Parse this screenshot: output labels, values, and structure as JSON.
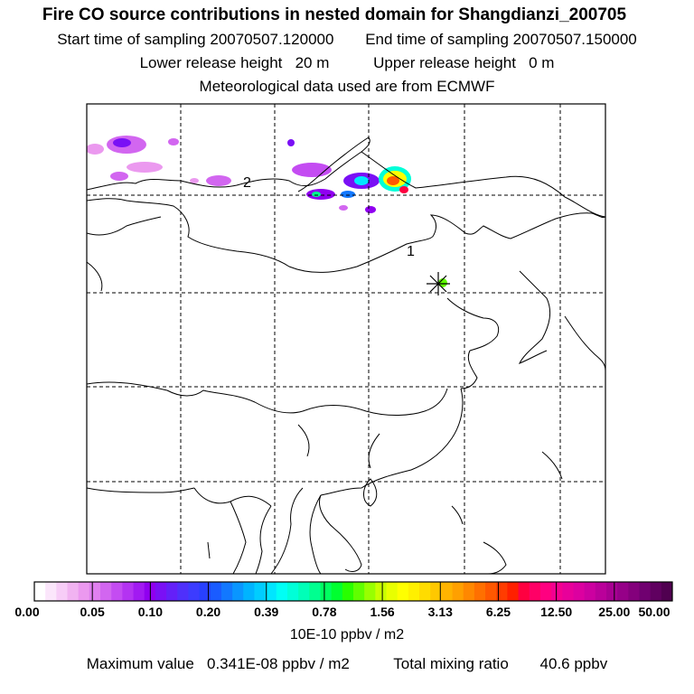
{
  "header": {
    "title": "Fire CO source contributions in nested domain for Shangdianzi_200705",
    "start_label": "Start time of sampling",
    "start_value": "20070507.120000",
    "end_label": "End time of sampling",
    "end_value": "20070507.150000",
    "lower_label": "Lower release height",
    "lower_value": "20 m",
    "upper_label": "Upper release height",
    "upper_value": "0 m",
    "met_line": "Meteorological data used are from ECMWF"
  },
  "map": {
    "markers": [
      "1",
      "2"
    ],
    "receptor_icon": "asterisk-star-icon"
  },
  "colorbar": {
    "labels": [
      "0.00",
      "0.05",
      "0.10",
      "0.20",
      "0.39",
      "0.78",
      "1.56",
      "3.13",
      "6.25",
      "12.50",
      "25.00",
      "50.00"
    ],
    "colors": [
      "#ffffff",
      "#fbe6fb",
      "#f7cdf7",
      "#f1b3f1",
      "#eb99ef",
      "#e080f0",
      "#d266f0",
      "#c44cf2",
      "#b433f2",
      "#a21af2",
      "#9000f0",
      "#7a10f5",
      "#6420f8",
      "#4f30fb",
      "#3c3cff",
      "#2840ff",
      "#1a5cff",
      "#1278ff",
      "#0a96ff",
      "#00b4ff",
      "#00cdff",
      "#00e6ff",
      "#00fff5",
      "#00ffd8",
      "#00ffb8",
      "#00ff90",
      "#00ff60",
      "#00ff30",
      "#28ff00",
      "#60ff00",
      "#98ff00",
      "#c8ff00",
      "#e8ff00",
      "#ffff00",
      "#fff000",
      "#ffdc00",
      "#ffc800",
      "#ffb400",
      "#ffa000",
      "#ff8800",
      "#ff7000",
      "#ff5800",
      "#ff3c00",
      "#ff2000",
      "#ff0040",
      "#ff0066",
      "#ff0080",
      "#f40090",
      "#e8009a",
      "#dc00a0",
      "#cc00a0",
      "#ba009a",
      "#a80092",
      "#960088",
      "#84007c",
      "#700070",
      "#600060",
      "#500050"
    ],
    "units": "10E-10 ppbv / m2"
  },
  "footer": {
    "max_label": "Maximum value",
    "max_value": "0.341E-08 ppbv / m2",
    "total_label": "Total mixing ratio",
    "total_value": "40.6 ppbv"
  }
}
